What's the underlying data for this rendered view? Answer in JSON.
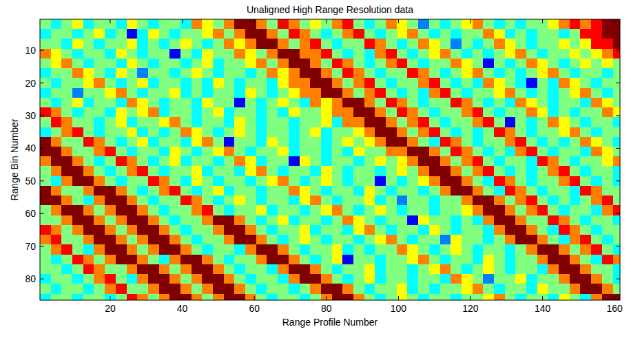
{
  "chart_data": {
    "type": "heatmap",
    "title": "Unaligned High Range Resolution data",
    "x_label": "Range Profile Number",
    "y_label": "Range Bin Number",
    "x": [
      2,
      5,
      8,
      11,
      14,
      17,
      20,
      23,
      26,
      29,
      32,
      35,
      38,
      41,
      44,
      47,
      50,
      53,
      56,
      59,
      62,
      65,
      68,
      71,
      74,
      77,
      80,
      83,
      86,
      89,
      92,
      95,
      98,
      101,
      104,
      107,
      110,
      113,
      116,
      119,
      122,
      125,
      128,
      131,
      134,
      137,
      140,
      143,
      146,
      149,
      152,
      155,
      158,
      161
    ],
    "y": [
      2,
      5,
      8,
      11,
      14,
      17,
      20,
      23,
      26,
      29,
      32,
      35,
      38,
      41,
      44,
      47,
      50,
      53,
      56,
      59,
      62,
      65,
      68,
      71,
      74,
      77,
      80,
      83,
      86
    ],
    "xlim": [
      0.5,
      161.5
    ],
    "ylim": [
      0.5,
      86.5
    ],
    "xticks": [
      20,
      40,
      60,
      80,
      100,
      120,
      140,
      160
    ],
    "yticks": [
      10,
      20,
      30,
      40,
      50,
      60,
      70,
      80
    ],
    "zlim": [
      1,
      9
    ],
    "cells": [
      [
        5,
        4,
        5,
        6,
        4,
        5,
        5,
        4,
        6,
        5,
        4,
        5,
        5,
        4,
        7,
        6,
        5,
        7,
        9,
        9,
        7,
        5,
        8,
        7,
        5,
        6,
        5,
        7,
        8,
        5,
        4,
        5,
        7,
        6,
        5,
        3,
        5,
        4,
        5,
        6,
        7,
        5,
        4,
        5,
        4,
        5,
        5,
        6,
        7,
        8,
        7,
        8,
        9,
        9
      ],
      [
        4,
        5,
        5,
        4,
        5,
        6,
        4,
        5,
        2,
        4,
        6,
        5,
        4,
        5,
        5,
        6,
        7,
        5,
        7,
        9,
        9,
        7,
        5,
        8,
        7,
        5,
        4,
        5,
        7,
        8,
        5,
        4,
        5,
        6,
        7,
        5,
        4,
        5,
        4,
        5,
        5,
        7,
        6,
        4,
        5,
        4,
        5,
        5,
        4,
        5,
        8,
        8,
        9,
        9
      ],
      [
        5,
        5,
        4,
        6,
        5,
        4,
        5,
        5,
        6,
        4,
        5,
        4,
        5,
        6,
        5,
        4,
        5,
        7,
        6,
        7,
        9,
        9,
        7,
        5,
        7,
        8,
        5,
        4,
        5,
        5,
        8,
        7,
        5,
        4,
        5,
        7,
        6,
        5,
        3,
        5,
        4,
        5,
        7,
        6,
        5,
        4,
        5,
        5,
        6,
        5,
        6,
        8,
        8,
        9
      ],
      [
        7,
        6,
        5,
        4,
        5,
        5,
        4,
        6,
        5,
        4,
        5,
        5,
        2,
        5,
        4,
        6,
        5,
        5,
        7,
        6,
        5,
        7,
        9,
        9,
        7,
        7,
        8,
        5,
        4,
        5,
        4,
        7,
        8,
        5,
        4,
        5,
        6,
        7,
        5,
        4,
        5,
        4,
        5,
        6,
        7,
        5,
        4,
        5,
        5,
        6,
        5,
        6,
        7,
        8
      ],
      [
        5,
        6,
        7,
        5,
        4,
        5,
        5,
        4,
        6,
        5,
        4,
        5,
        5,
        4,
        5,
        6,
        4,
        5,
        5,
        6,
        7,
        5,
        7,
        9,
        9,
        7,
        5,
        8,
        7,
        5,
        4,
        5,
        7,
        8,
        5,
        4,
        5,
        5,
        7,
        6,
        5,
        2,
        5,
        4,
        5,
        7,
        6,
        5,
        4,
        5,
        6,
        5,
        6,
        5
      ],
      [
        4,
        5,
        5,
        7,
        6,
        5,
        4,
        6,
        5,
        3,
        5,
        5,
        4,
        5,
        6,
        5,
        4,
        5,
        5,
        4,
        5,
        7,
        6,
        7,
        9,
        9,
        7,
        5,
        8,
        7,
        5,
        4,
        5,
        5,
        8,
        7,
        5,
        4,
        5,
        6,
        7,
        5,
        4,
        5,
        4,
        5,
        6,
        7,
        5,
        4,
        5,
        5,
        4,
        5
      ],
      [
        5,
        4,
        5,
        5,
        6,
        7,
        5,
        4,
        5,
        6,
        4,
        5,
        5,
        4,
        5,
        4,
        6,
        5,
        4,
        5,
        5,
        4,
        6,
        7,
        7,
        9,
        9,
        7,
        5,
        7,
        8,
        5,
        4,
        5,
        5,
        7,
        8,
        5,
        4,
        5,
        4,
        7,
        6,
        5,
        4,
        2,
        5,
        4,
        7,
        6,
        5,
        4,
        5,
        5
      ],
      [
        4,
        5,
        5,
        3,
        5,
        5,
        6,
        7,
        5,
        4,
        5,
        5,
        6,
        4,
        5,
        4,
        5,
        5,
        4,
        6,
        5,
        4,
        5,
        6,
        7,
        7,
        9,
        9,
        7,
        5,
        7,
        8,
        5,
        4,
        5,
        4,
        7,
        8,
        5,
        4,
        5,
        5,
        6,
        7,
        5,
        4,
        5,
        4,
        5,
        6,
        7,
        5,
        4,
        5
      ],
      [
        5,
        4,
        5,
        6,
        4,
        5,
        5,
        4,
        7,
        6,
        5,
        4,
        5,
        5,
        4,
        6,
        5,
        5,
        2,
        5,
        4,
        5,
        6,
        5,
        4,
        7,
        6,
        7,
        9,
        9,
        7,
        5,
        8,
        7,
        5,
        4,
        5,
        5,
        8,
        7,
        5,
        4,
        5,
        4,
        7,
        6,
        5,
        4,
        5,
        5,
        4,
        7,
        6,
        5
      ],
      [
        8,
        7,
        5,
        4,
        5,
        5,
        4,
        6,
        5,
        6,
        7,
        4,
        5,
        5,
        4,
        5,
        6,
        4,
        5,
        5,
        4,
        5,
        4,
        6,
        5,
        5,
        6,
        7,
        7,
        9,
        9,
        7,
        5,
        8,
        7,
        5,
        4,
        5,
        5,
        7,
        8,
        5,
        4,
        5,
        5,
        7,
        6,
        4,
        5,
        4,
        5,
        5,
        7,
        6
      ],
      [
        5,
        8,
        7,
        5,
        5,
        4,
        5,
        6,
        4,
        5,
        5,
        6,
        7,
        5,
        4,
        5,
        5,
        4,
        6,
        5,
        4,
        5,
        5,
        4,
        5,
        5,
        6,
        4,
        7,
        7,
        9,
        9,
        7,
        5,
        7,
        8,
        5,
        4,
        5,
        5,
        7,
        8,
        5,
        2,
        5,
        4,
        5,
        7,
        6,
        5,
        4,
        5,
        5,
        4
      ],
      [
        4,
        5,
        7,
        8,
        5,
        4,
        5,
        5,
        6,
        4,
        5,
        4,
        5,
        7,
        6,
        5,
        4,
        5,
        6,
        5,
        4,
        5,
        5,
        4,
        5,
        6,
        4,
        5,
        5,
        6,
        7,
        9,
        9,
        7,
        5,
        7,
        8,
        5,
        4,
        5,
        4,
        5,
        8,
        7,
        5,
        4,
        5,
        5,
        6,
        7,
        5,
        4,
        5,
        5
      ],
      [
        9,
        7,
        5,
        5,
        8,
        7,
        5,
        4,
        5,
        6,
        4,
        5,
        5,
        4,
        6,
        7,
        5,
        2,
        5,
        5,
        4,
        6,
        5,
        4,
        5,
        5,
        4,
        5,
        6,
        5,
        6,
        7,
        9,
        9,
        7,
        5,
        4,
        8,
        7,
        5,
        4,
        5,
        5,
        7,
        8,
        5,
        4,
        5,
        4,
        5,
        7,
        6,
        5,
        4
      ],
      [
        9,
        9,
        7,
        5,
        5,
        7,
        8,
        5,
        4,
        5,
        5,
        4,
        6,
        5,
        4,
        5,
        6,
        7,
        5,
        4,
        5,
        5,
        6,
        4,
        5,
        5,
        4,
        5,
        4,
        6,
        5,
        5,
        7,
        7,
        9,
        9,
        7,
        5,
        8,
        7,
        5,
        4,
        5,
        4,
        7,
        8,
        5,
        4,
        5,
        5,
        4,
        7,
        6,
        5
      ],
      [
        7,
        9,
        9,
        7,
        5,
        4,
        5,
        8,
        7,
        5,
        4,
        5,
        6,
        4,
        5,
        5,
        4,
        5,
        7,
        6,
        4,
        5,
        5,
        2,
        6,
        5,
        4,
        5,
        5,
        4,
        5,
        6,
        5,
        6,
        7,
        9,
        9,
        7,
        5,
        7,
        8,
        5,
        4,
        5,
        5,
        4,
        8,
        7,
        5,
        4,
        5,
        5,
        6,
        7
      ],
      [
        5,
        7,
        9,
        9,
        7,
        5,
        4,
        5,
        7,
        8,
        5,
        4,
        5,
        5,
        6,
        4,
        5,
        5,
        4,
        6,
        7,
        5,
        4,
        5,
        5,
        4,
        6,
        5,
        4,
        5,
        5,
        4,
        5,
        6,
        5,
        7,
        9,
        9,
        7,
        5,
        7,
        8,
        5,
        4,
        5,
        4,
        5,
        7,
        8,
        5,
        4,
        5,
        5,
        4
      ],
      [
        5,
        4,
        7,
        9,
        9,
        7,
        5,
        4,
        5,
        5,
        8,
        7,
        5,
        4,
        6,
        5,
        4,
        5,
        5,
        4,
        5,
        6,
        7,
        5,
        4,
        5,
        6,
        5,
        4,
        5,
        5,
        2,
        5,
        4,
        5,
        6,
        7,
        9,
        9,
        7,
        5,
        4,
        8,
        7,
        5,
        4,
        5,
        5,
        7,
        8,
        5,
        4,
        5,
        4
      ],
      [
        9,
        7,
        5,
        5,
        7,
        9,
        9,
        7,
        5,
        4,
        5,
        7,
        8,
        5,
        4,
        5,
        6,
        4,
        5,
        5,
        4,
        5,
        5,
        7,
        6,
        5,
        4,
        5,
        5,
        4,
        6,
        5,
        4,
        5,
        5,
        4,
        5,
        7,
        9,
        9,
        7,
        5,
        4,
        8,
        7,
        5,
        4,
        5,
        5,
        4,
        8,
        7,
        5,
        5
      ],
      [
        9,
        9,
        7,
        5,
        4,
        7,
        9,
        9,
        7,
        5,
        4,
        5,
        5,
        8,
        7,
        5,
        4,
        5,
        6,
        5,
        4,
        5,
        5,
        4,
        6,
        7,
        5,
        4,
        5,
        5,
        6,
        4,
        5,
        3,
        5,
        5,
        4,
        5,
        5,
        7,
        9,
        9,
        7,
        5,
        7,
        8,
        5,
        4,
        5,
        4,
        5,
        7,
        8,
        5
      ],
      [
        5,
        7,
        9,
        9,
        7,
        5,
        7,
        9,
        9,
        7,
        5,
        4,
        5,
        5,
        7,
        8,
        5,
        4,
        5,
        5,
        6,
        4,
        5,
        5,
        4,
        5,
        6,
        7,
        5,
        4,
        5,
        6,
        5,
        4,
        5,
        5,
        4,
        5,
        5,
        6,
        7,
        9,
        9,
        7,
        5,
        7,
        8,
        5,
        4,
        5,
        5,
        4,
        7,
        8
      ],
      [
        5,
        5,
        7,
        9,
        9,
        7,
        5,
        7,
        9,
        9,
        7,
        5,
        4,
        5,
        5,
        7,
        9,
        9,
        7,
        5,
        4,
        5,
        6,
        4,
        5,
        5,
        4,
        5,
        7,
        6,
        5,
        4,
        5,
        5,
        2,
        6,
        5,
        5,
        4,
        5,
        4,
        7,
        9,
        9,
        7,
        5,
        5,
        8,
        7,
        5,
        4,
        5,
        5,
        4
      ],
      [
        8,
        7,
        5,
        7,
        9,
        9,
        7,
        5,
        7,
        9,
        9,
        7,
        5,
        4,
        5,
        5,
        7,
        9,
        9,
        7,
        5,
        4,
        5,
        5,
        6,
        4,
        5,
        5,
        4,
        6,
        7,
        5,
        4,
        5,
        5,
        4,
        6,
        5,
        4,
        5,
        5,
        4,
        7,
        9,
        9,
        7,
        5,
        4,
        8,
        7,
        5,
        4,
        5,
        5
      ],
      [
        7,
        8,
        5,
        5,
        7,
        9,
        9,
        7,
        5,
        7,
        9,
        9,
        7,
        5,
        4,
        5,
        5,
        7,
        9,
        9,
        7,
        5,
        4,
        5,
        6,
        5,
        4,
        5,
        5,
        4,
        5,
        6,
        7,
        5,
        4,
        5,
        5,
        3,
        6,
        5,
        5,
        4,
        5,
        7,
        9,
        9,
        7,
        5,
        4,
        7,
        8,
        5,
        4,
        5
      ],
      [
        5,
        7,
        8,
        5,
        4,
        7,
        9,
        9,
        7,
        5,
        7,
        9,
        9,
        7,
        5,
        4,
        5,
        5,
        4,
        7,
        9,
        9,
        7,
        5,
        4,
        5,
        5,
        6,
        4,
        5,
        4,
        5,
        5,
        7,
        6,
        5,
        4,
        5,
        6,
        5,
        4,
        5,
        5,
        4,
        5,
        7,
        9,
        9,
        7,
        5,
        7,
        8,
        5,
        4
      ],
      [
        5,
        4,
        5,
        8,
        7,
        5,
        7,
        9,
        9,
        7,
        5,
        4,
        7,
        9,
        9,
        7,
        5,
        4,
        5,
        5,
        7,
        9,
        9,
        7,
        5,
        4,
        5,
        6,
        2,
        5,
        5,
        4,
        5,
        5,
        6,
        7,
        5,
        4,
        5,
        5,
        4,
        6,
        5,
        4,
        5,
        5,
        7,
        9,
        9,
        7,
        5,
        4,
        8,
        7
      ],
      [
        5,
        5,
        4,
        5,
        8,
        7,
        5,
        5,
        7,
        9,
        9,
        7,
        5,
        7,
        9,
        9,
        7,
        5,
        4,
        5,
        5,
        4,
        7,
        9,
        9,
        7,
        5,
        4,
        5,
        5,
        6,
        4,
        5,
        5,
        4,
        5,
        6,
        7,
        5,
        4,
        5,
        6,
        5,
        4,
        5,
        5,
        4,
        7,
        9,
        9,
        7,
        5,
        5,
        4
      ],
      [
        4,
        5,
        5,
        4,
        5,
        7,
        8,
        5,
        4,
        7,
        9,
        9,
        7,
        5,
        7,
        9,
        9,
        7,
        5,
        4,
        5,
        5,
        4,
        7,
        9,
        9,
        7,
        5,
        4,
        5,
        6,
        4,
        5,
        5,
        4,
        5,
        5,
        4,
        7,
        6,
        5,
        3,
        5,
        5,
        6,
        4,
        5,
        5,
        7,
        9,
        9,
        7,
        5,
        4
      ],
      [
        5,
        4,
        5,
        5,
        4,
        5,
        7,
        8,
        5,
        5,
        7,
        9,
        9,
        7,
        5,
        7,
        9,
        9,
        7,
        5,
        4,
        5,
        5,
        4,
        5,
        7,
        9,
        9,
        7,
        5,
        4,
        5,
        5,
        6,
        4,
        5,
        4,
        5,
        5,
        6,
        7,
        5,
        4,
        5,
        5,
        4,
        6,
        5,
        5,
        7,
        9,
        9,
        7,
        5
      ],
      [
        4,
        5,
        5,
        4,
        5,
        5,
        4,
        5,
        8,
        7,
        5,
        7,
        9,
        9,
        7,
        5,
        7,
        9,
        9,
        7,
        5,
        4,
        5,
        5,
        4,
        5,
        7,
        9,
        9,
        7,
        5,
        4,
        5,
        6,
        5,
        4,
        5,
        5,
        4,
        5,
        5,
        6,
        7,
        5,
        4,
        5,
        5,
        4,
        6,
        5,
        4,
        7,
        9,
        9
      ]
    ]
  }
}
